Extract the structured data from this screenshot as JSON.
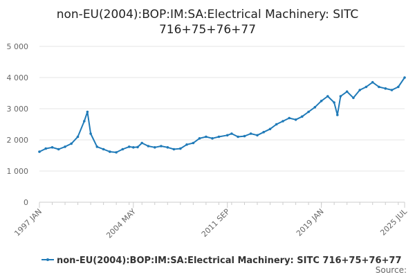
{
  "chart_data": {
    "type": "line",
    "title": "non-EU(2004):BOP:IM:SA:Electrical Machinery: SITC 716+75+76+77",
    "xlabel": "",
    "ylabel": "",
    "x_tick_labels": [
      "1997 JAN",
      "2004 MAY",
      "2011 SEP",
      "2019 JAN",
      "2025 JUL"
    ],
    "y_tick_labels": [
      "0",
      "1 000",
      "2 000",
      "3 000",
      "4 000",
      "5 000"
    ],
    "ylim": [
      0,
      5000
    ],
    "grid": true,
    "legend_position": "bottom",
    "source_label": "Source:",
    "series": [
      {
        "name": "non-EU(2004):BOP:IM:SA:Electrical Machinery: SITC 716+75+76+77",
        "color": "#1f7ab8",
        "x": [
          "1997-01",
          "1997-07",
          "1998-01",
          "1998-07",
          "1999-01",
          "1999-07",
          "2000-01",
          "2000-07",
          "2000-10",
          "2001-01",
          "2001-07",
          "2002-01",
          "2002-07",
          "2003-01",
          "2003-07",
          "2004-01",
          "2004-05",
          "2004-09",
          "2005-01",
          "2005-07",
          "2006-01",
          "2006-07",
          "2007-01",
          "2007-07",
          "2008-01",
          "2008-07",
          "2009-01",
          "2009-07",
          "2010-01",
          "2010-07",
          "2011-01",
          "2011-09",
          "2012-01",
          "2012-07",
          "2013-01",
          "2013-07",
          "2014-01",
          "2014-07",
          "2015-01",
          "2015-07",
          "2016-01",
          "2016-07",
          "2017-01",
          "2017-07",
          "2018-01",
          "2018-07",
          "2019-01",
          "2019-07",
          "2020-01",
          "2020-04",
          "2020-07",
          "2021-01",
          "2021-07",
          "2022-01",
          "2022-07",
          "2023-01",
          "2023-07",
          "2024-01",
          "2024-07",
          "2025-01",
          "2025-07"
        ],
        "values": [
          1620,
          1720,
          1760,
          1700,
          1780,
          1880,
          2100,
          2600,
          2900,
          2200,
          1780,
          1700,
          1620,
          1600,
          1700,
          1780,
          1760,
          1770,
          1900,
          1800,
          1760,
          1800,
          1760,
          1700,
          1720,
          1850,
          1900,
          2050,
          2100,
          2050,
          2100,
          2150,
          2200,
          2100,
          2120,
          2200,
          2150,
          2250,
          2350,
          2500,
          2600,
          2700,
          2650,
          2750,
          2900,
          3050,
          3250,
          3400,
          3200,
          2800,
          3400,
          3550,
          3350,
          3600,
          3700,
          3850,
          3700,
          3650,
          3600,
          3700,
          4000
        ]
      }
    ]
  }
}
